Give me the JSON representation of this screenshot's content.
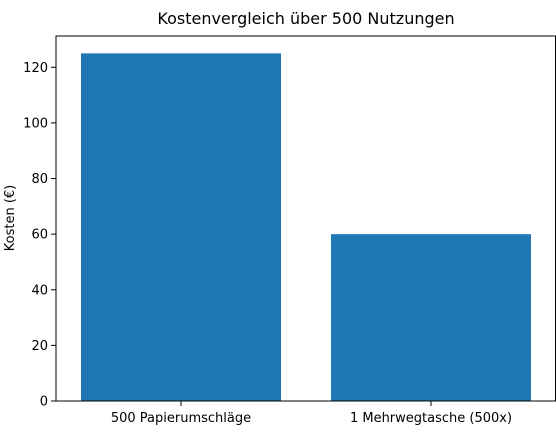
{
  "chart_data": {
    "type": "bar",
    "title": "Kostenvergleich über 500 Nutzungen",
    "xlabel": "",
    "ylabel": "Kosten (€)",
    "categories": [
      "500 Papierumschläge",
      "1 Mehrwegtasche (500x)"
    ],
    "values": [
      125,
      60
    ],
    "ylim": [
      0,
      131.25
    ],
    "yticks": [
      0,
      20,
      40,
      60,
      80,
      100,
      120
    ],
    "grid": false,
    "bar_color": "#1f77b4"
  }
}
